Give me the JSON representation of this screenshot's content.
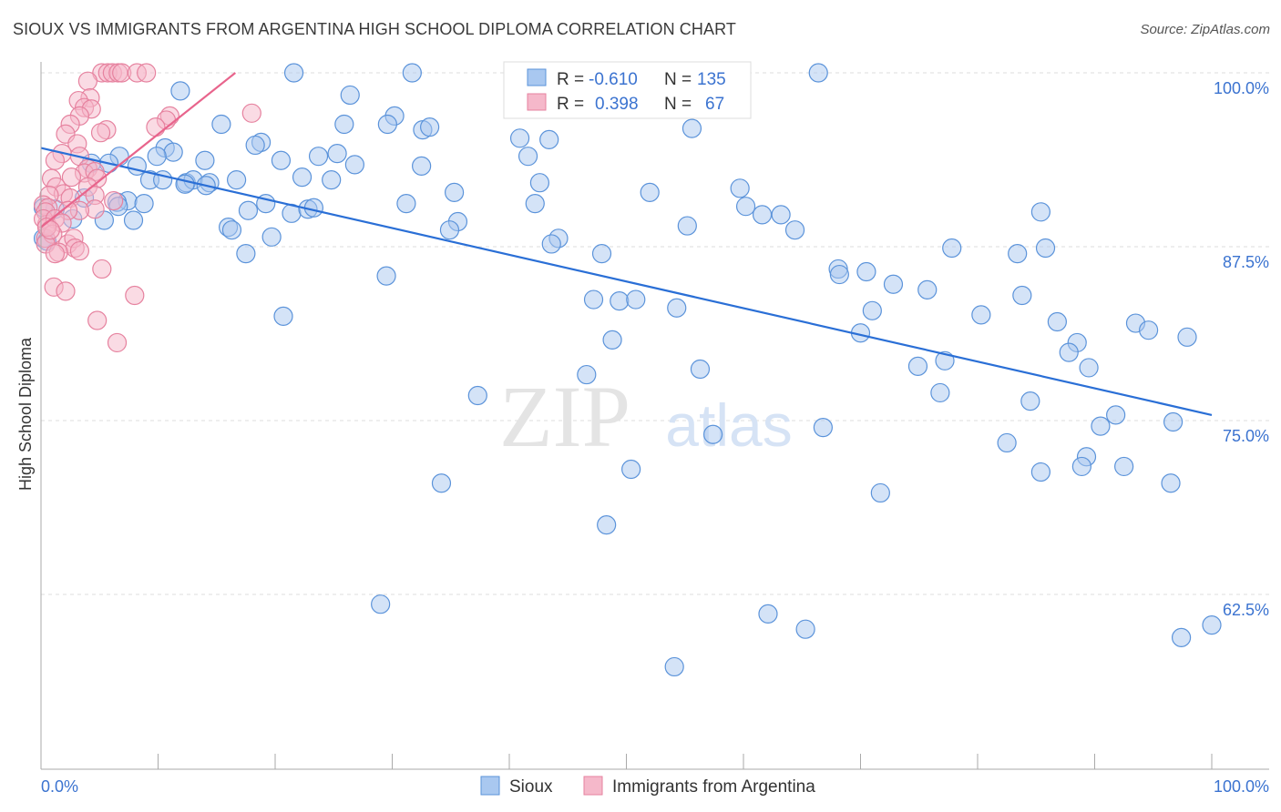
{
  "chart_data": {
    "type": "scatter",
    "title": "SIOUX VS IMMIGRANTS FROM ARGENTINA HIGH SCHOOL DIPLOMA CORRELATION CHART",
    "source": "Source: ZipAtlas.com",
    "xlabel": "",
    "ylabel": "High School Diploma",
    "xlim": [
      0,
      100
    ],
    "ylim": [
      50,
      100
    ],
    "x_tick_labels": [
      "0.0%",
      "100.0%"
    ],
    "y_ticks": [
      100,
      87.5,
      75,
      62.5
    ],
    "y_tick_labels": [
      "100.0%",
      "87.5%",
      "75.0%",
      "62.5%"
    ],
    "watermark": "ZIPatlas",
    "legend_placement": "top-center",
    "stats": [
      {
        "r_label": "R =",
        "r": "-0.610",
        "n_label": "N =",
        "n": "135"
      },
      {
        "r_label": "R =",
        "r": "0.398",
        "n_label": "N =",
        "n": "67"
      }
    ],
    "series": [
      {
        "name": "Sioux",
        "color": "#5b93da",
        "fill": "#a9c8f0",
        "trend": [
          [
            0,
            94.6
          ],
          [
            100,
            75.4
          ]
        ],
        "points": [
          [
            21.6,
            100
          ],
          [
            31.7,
            100
          ],
          [
            66.4,
            100
          ],
          [
            45.4,
            100
          ],
          [
            11.9,
            98.7
          ],
          [
            26.4,
            98.4
          ],
          [
            30.2,
            96.9
          ],
          [
            29.6,
            96.3
          ],
          [
            25.9,
            96.3
          ],
          [
            15.4,
            96.3
          ],
          [
            32.6,
            95.9
          ],
          [
            33.2,
            96.1
          ],
          [
            55.6,
            96.0
          ],
          [
            40.9,
            95.3
          ],
          [
            43.4,
            95.2
          ],
          [
            18.8,
            95.0
          ],
          [
            18.3,
            94.8
          ],
          [
            10.6,
            94.6
          ],
          [
            11.3,
            94.3
          ],
          [
            9.9,
            94.0
          ],
          [
            23.7,
            94.0
          ],
          [
            25.3,
            94.2
          ],
          [
            20.5,
            93.7
          ],
          [
            14.0,
            93.7
          ],
          [
            26.8,
            93.4
          ],
          [
            6.7,
            94.0
          ],
          [
            5.8,
            93.5
          ],
          [
            8.2,
            93.3
          ],
          [
            4.3,
            93.5
          ],
          [
            32.5,
            93.3
          ],
          [
            41.6,
            94.0
          ],
          [
            42.6,
            92.1
          ],
          [
            9.3,
            92.3
          ],
          [
            10.4,
            92.3
          ],
          [
            12.4,
            92.1
          ],
          [
            13.0,
            92.3
          ],
          [
            14.4,
            92.1
          ],
          [
            16.7,
            92.3
          ],
          [
            22.3,
            92.5
          ],
          [
            24.8,
            92.3
          ],
          [
            12.3,
            92.0
          ],
          [
            14.1,
            91.9
          ],
          [
            59.7,
            91.7
          ],
          [
            52.0,
            91.4
          ],
          [
            35.3,
            91.4
          ],
          [
            7.4,
            90.8
          ],
          [
            6.5,
            90.7
          ],
          [
            3.7,
            91.0
          ],
          [
            6.6,
            90.4
          ],
          [
            8.8,
            90.6
          ],
          [
            17.7,
            90.1
          ],
          [
            19.2,
            90.6
          ],
          [
            21.4,
            89.9
          ],
          [
            22.8,
            90.2
          ],
          [
            23.3,
            90.3
          ],
          [
            31.2,
            90.6
          ],
          [
            42.2,
            90.6
          ],
          [
            60.2,
            90.4
          ],
          [
            61.6,
            89.8
          ],
          [
            63.2,
            89.8
          ],
          [
            85.4,
            90.0
          ],
          [
            35.6,
            89.3
          ],
          [
            34.9,
            88.7
          ],
          [
            2.7,
            89.5
          ],
          [
            5.4,
            89.4
          ],
          [
            7.9,
            89.4
          ],
          [
            16.0,
            88.9
          ],
          [
            16.3,
            88.7
          ],
          [
            19.7,
            88.2
          ],
          [
            55.2,
            89.0
          ],
          [
            64.4,
            88.7
          ],
          [
            17.5,
            87.0
          ],
          [
            44.2,
            88.1
          ],
          [
            43.6,
            87.7
          ],
          [
            47.9,
            87.0
          ],
          [
            77.8,
            87.4
          ],
          [
            83.4,
            87.0
          ],
          [
            85.8,
            87.4
          ],
          [
            68.1,
            85.9
          ],
          [
            68.2,
            85.5
          ],
          [
            70.5,
            85.7
          ],
          [
            29.5,
            85.4
          ],
          [
            72.8,
            84.8
          ],
          [
            75.7,
            84.4
          ],
          [
            47.2,
            83.7
          ],
          [
            49.4,
            83.6
          ],
          [
            50.8,
            83.7
          ],
          [
            83.8,
            84.0
          ],
          [
            54.3,
            83.1
          ],
          [
            71.0,
            82.9
          ],
          [
            20.7,
            82.5
          ],
          [
            80.3,
            82.6
          ],
          [
            86.8,
            82.1
          ],
          [
            93.5,
            82.0
          ],
          [
            94.6,
            81.5
          ],
          [
            70.0,
            81.3
          ],
          [
            97.9,
            81.0
          ],
          [
            48.8,
            80.8
          ],
          [
            88.5,
            80.6
          ],
          [
            87.8,
            79.9
          ],
          [
            77.2,
            79.3
          ],
          [
            74.9,
            78.9
          ],
          [
            89.5,
            78.8
          ],
          [
            46.6,
            78.3
          ],
          [
            56.3,
            78.7
          ],
          [
            76.8,
            77.0
          ],
          [
            84.5,
            76.4
          ],
          [
            37.3,
            76.8
          ],
          [
            91.8,
            75.4
          ],
          [
            96.7,
            74.9
          ],
          [
            90.5,
            74.6
          ],
          [
            66.8,
            74.5
          ],
          [
            57.4,
            74.0
          ],
          [
            82.5,
            73.4
          ],
          [
            89.3,
            72.4
          ],
          [
            88.9,
            71.7
          ],
          [
            92.5,
            71.7
          ],
          [
            50.4,
            71.5
          ],
          [
            85.4,
            71.3
          ],
          [
            34.2,
            70.5
          ],
          [
            96.5,
            70.5
          ],
          [
            71.7,
            69.8
          ],
          [
            48.3,
            67.5
          ],
          [
            29.0,
            61.8
          ],
          [
            62.1,
            61.1
          ],
          [
            65.3,
            60.0
          ],
          [
            100,
            60.3
          ],
          [
            97.4,
            59.4
          ],
          [
            54.1,
            57.3
          ],
          [
            0.2,
            88.1
          ],
          [
            0.5,
            87.9
          ],
          [
            1.2,
            90.2
          ],
          [
            0.2,
            90.3
          ]
        ]
      },
      {
        "name": "Immigrants from Argentina",
        "color": "#e6829f",
        "fill": "#f5b8ca",
        "trend": [
          [
            0,
            88.9
          ],
          [
            16.6,
            100
          ]
        ],
        "points": [
          [
            5.2,
            100
          ],
          [
            5.7,
            100
          ],
          [
            6.1,
            100
          ],
          [
            6.6,
            100
          ],
          [
            6.9,
            100
          ],
          [
            8.2,
            100
          ],
          [
            9.0,
            100
          ],
          [
            4.0,
            99.4
          ],
          [
            4.2,
            98.2
          ],
          [
            3.2,
            98.0
          ],
          [
            3.7,
            97.5
          ],
          [
            4.3,
            97.4
          ],
          [
            3.3,
            96.9
          ],
          [
            2.5,
            96.3
          ],
          [
            18.0,
            97.1
          ],
          [
            11.0,
            96.9
          ],
          [
            10.7,
            96.6
          ],
          [
            9.8,
            96.1
          ],
          [
            5.6,
            95.9
          ],
          [
            5.1,
            95.7
          ],
          [
            2.1,
            95.6
          ],
          [
            3.1,
            94.9
          ],
          [
            1.8,
            94.2
          ],
          [
            1.2,
            93.7
          ],
          [
            3.3,
            94.0
          ],
          [
            4.0,
            93.1
          ],
          [
            3.7,
            92.8
          ],
          [
            4.6,
            92.9
          ],
          [
            4.8,
            92.4
          ],
          [
            2.6,
            92.5
          ],
          [
            0.9,
            92.4
          ],
          [
            1.3,
            91.8
          ],
          [
            1.9,
            91.3
          ],
          [
            2.5,
            91.0
          ],
          [
            4.0,
            91.8
          ],
          [
            0.7,
            91.2
          ],
          [
            0.2,
            90.5
          ],
          [
            0.6,
            90.3
          ],
          [
            0.4,
            90.0
          ],
          [
            4.6,
            91.2
          ],
          [
            6.2,
            90.8
          ],
          [
            4.6,
            90.2
          ],
          [
            3.3,
            90.1
          ],
          [
            2.3,
            90.1
          ],
          [
            0.5,
            89.1
          ],
          [
            0.2,
            89.5
          ],
          [
            1.2,
            89.5
          ],
          [
            1.8,
            89.2
          ],
          [
            0.4,
            88.1
          ],
          [
            1.0,
            88.4
          ],
          [
            0.4,
            87.7
          ],
          [
            2.3,
            87.7
          ],
          [
            2.8,
            88.1
          ],
          [
            2.9,
            87.4
          ],
          [
            3.3,
            87.2
          ],
          [
            1.5,
            87.1
          ],
          [
            1.2,
            87.0
          ],
          [
            5.2,
            85.9
          ],
          [
            1.1,
            84.6
          ],
          [
            2.1,
            84.3
          ],
          [
            8.0,
            84.0
          ],
          [
            4.8,
            82.2
          ],
          [
            6.5,
            80.6
          ],
          [
            0.5,
            88.9
          ],
          [
            0.8,
            88.7
          ]
        ]
      }
    ]
  }
}
